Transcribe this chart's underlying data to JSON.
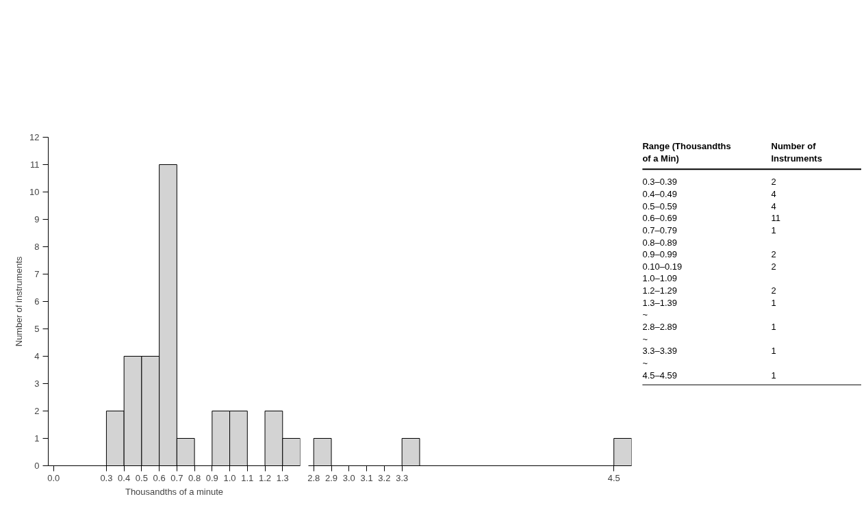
{
  "chart_data": [
    {
      "type": "histogram",
      "xlabel": "Thousandths of a minute",
      "ylabel": "Number of instruments",
      "bins": [
        0.3,
        0.4,
        0.5,
        0.6,
        0.7,
        0.8,
        0.9,
        1.0,
        1.1,
        1.2,
        1.3,
        1.4
      ],
      "values": [
        2,
        4,
        4,
        11,
        1,
        0,
        2,
        2,
        0,
        2,
        1
      ],
      "color": "#d3d3d3",
      "xlim": [
        -0.03,
        1.4
      ],
      "xticks": [
        {
          "value": 0.0,
          "label": "0.0"
        },
        0.3,
        0.4,
        0.5,
        0.6,
        0.7,
        0.8,
        0.9,
        {
          "value": 1.0,
          "label": "1.0"
        },
        1.1,
        1.2,
        1.3
      ],
      "ylim": [
        0,
        12
      ],
      "yticks": [
        0,
        1,
        2,
        3,
        4,
        5,
        6,
        7,
        8,
        9,
        10,
        11,
        12
      ],
      "grid": false
    },
    {
      "type": "histogram",
      "bins": [
        2.8,
        2.9,
        3.3,
        3.4,
        4.5,
        4.6
      ],
      "values": [
        1,
        0,
        1,
        0,
        1
      ],
      "color": "#d3d3d3",
      "xlim": [
        2.77,
        4.6
      ],
      "xticks": [
        2.8,
        2.9,
        {
          "value": 3.0,
          "label": "3.0"
        },
        3.1,
        3.2,
        3.3,
        4.5
      ],
      "ylim": [
        0,
        12
      ],
      "tick_labels": "x",
      "grid": false
    },
    {
      "type": "other",
      "xlabel": "Range (Thousandths of a Min)",
      "ylabel": "Number of Instruments",
      "categories": [
        "0.3–0.39",
        "0.4–0.49",
        "0.5–0.59",
        "0.6–0.69",
        "0.7–0.79",
        "0.8–0.89",
        "0.9–0.99",
        "0.10–0.19",
        "1.0–1.09",
        "1.2–1.29",
        "1.3–1.39",
        "~",
        "2.8–2.89",
        "~",
        "3.3–3.39",
        "~",
        "4.5–4.59"
      ],
      "values": [
        2,
        4,
        4,
        11,
        1,
        null,
        2,
        2,
        null,
        2,
        1,
        null,
        1,
        null,
        1,
        null,
        1
      ],
      "value_labels": [
        "2",
        "4",
        "4",
        "11",
        "1",
        null,
        "2",
        "2",
        null,
        "2",
        "1",
        null,
        "1",
        null,
        "1",
        null,
        "1"
      ]
    }
  ]
}
